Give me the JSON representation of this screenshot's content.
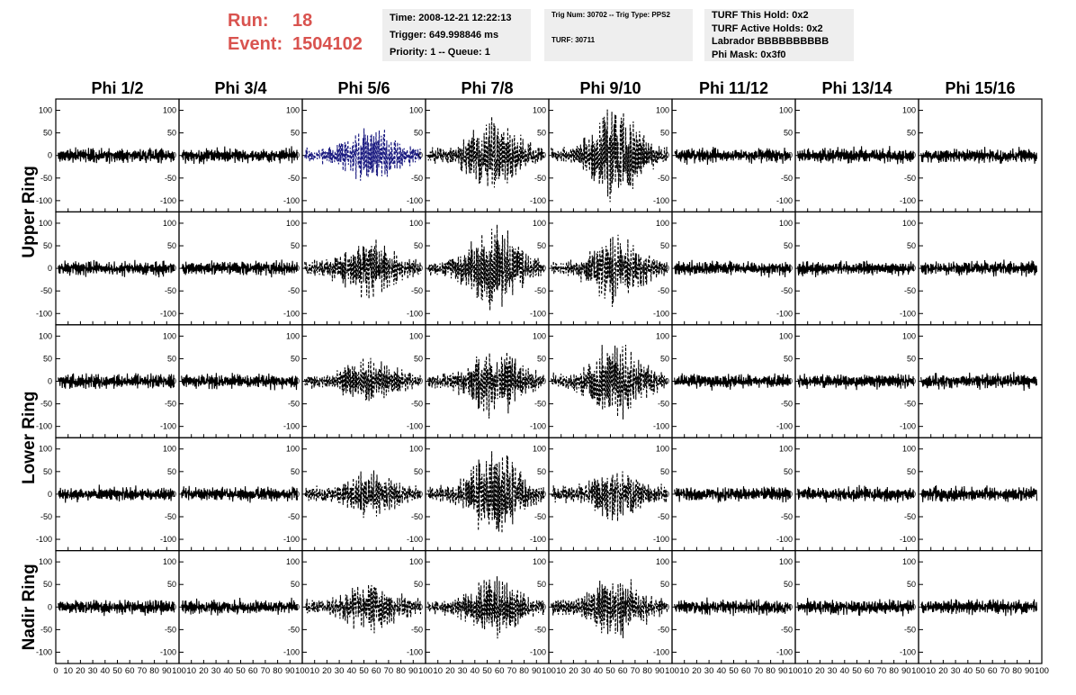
{
  "header": {
    "run_label": "Run:",
    "run_value": "18",
    "event_label": "Event:",
    "event_value": "1504102",
    "time": "Time: 2008-12-21 12:22:13",
    "trigger": "Trigger: 649.998846 ms",
    "priority": "Priority: 1 -- Queue: 1",
    "trig_num": "Trig Num: 30702 -- Trig Type: PPS2",
    "turf": "TURF: 30711",
    "turf_hold": "TURF This Hold: 0x2",
    "turf_active": "TURF Active Holds: 0x2",
    "labrador": "Labrador BBBBBBBBBB",
    "phi_mask": "Phi Mask: 0x3f0"
  },
  "colors": {
    "header_red": "#d9534f",
    "box_bg": "#eeeeee",
    "trace": "#000000",
    "highlight_trace": "#1a1a80"
  },
  "chart_data": {
    "type": "line",
    "columns": [
      "Phi 1/2",
      "Phi 3/4",
      "Phi 5/6",
      "Phi 7/8",
      "Phi 9/10",
      "Phi 11/12",
      "Phi 13/14",
      "Phi 15/16"
    ],
    "rows": [
      "Upper Ring",
      "Upper Ring",
      "Lower Ring",
      "Lower Ring",
      "Nadir Ring"
    ],
    "row_labels": [
      "Upper Ring",
      "Lower Ring",
      "Nadir Ring"
    ],
    "xlim": [
      0,
      100
    ],
    "ylim": [
      -125,
      125
    ],
    "yticks": [
      -100,
      -50,
      0,
      50,
      100
    ],
    "xtick_labels": [
      "0",
      "10",
      "20",
      "30",
      "40",
      "50",
      "60",
      "70",
      "80",
      "90",
      "100"
    ],
    "grid": false,
    "description_by_panel": {
      "noise_amplitude": 22,
      "dashed_panels": [
        [
          0,
          2
        ],
        [
          0,
          3
        ],
        [
          0,
          4
        ],
        [
          1,
          2
        ],
        [
          1,
          3
        ],
        [
          1,
          4
        ],
        [
          2,
          2
        ],
        [
          2,
          3
        ],
        [
          2,
          4
        ],
        [
          3,
          2
        ],
        [
          3,
          3
        ],
        [
          3,
          4
        ],
        [
          4,
          2
        ],
        [
          4,
          3
        ],
        [
          4,
          4
        ]
      ],
      "highlight_panel": [
        0,
        2
      ],
      "signal_peak": {
        "0,2": 55,
        "0,3": 80,
        "0,4": 95,
        "1,2": 55,
        "1,3": 90,
        "1,4": 70,
        "2,2": 40,
        "2,3": 70,
        "2,4": 80,
        "3,2": 40,
        "3,3": 95,
        "3,4": 45,
        "4,2": 45,
        "4,3": 60,
        "4,4": 60
      }
    }
  }
}
